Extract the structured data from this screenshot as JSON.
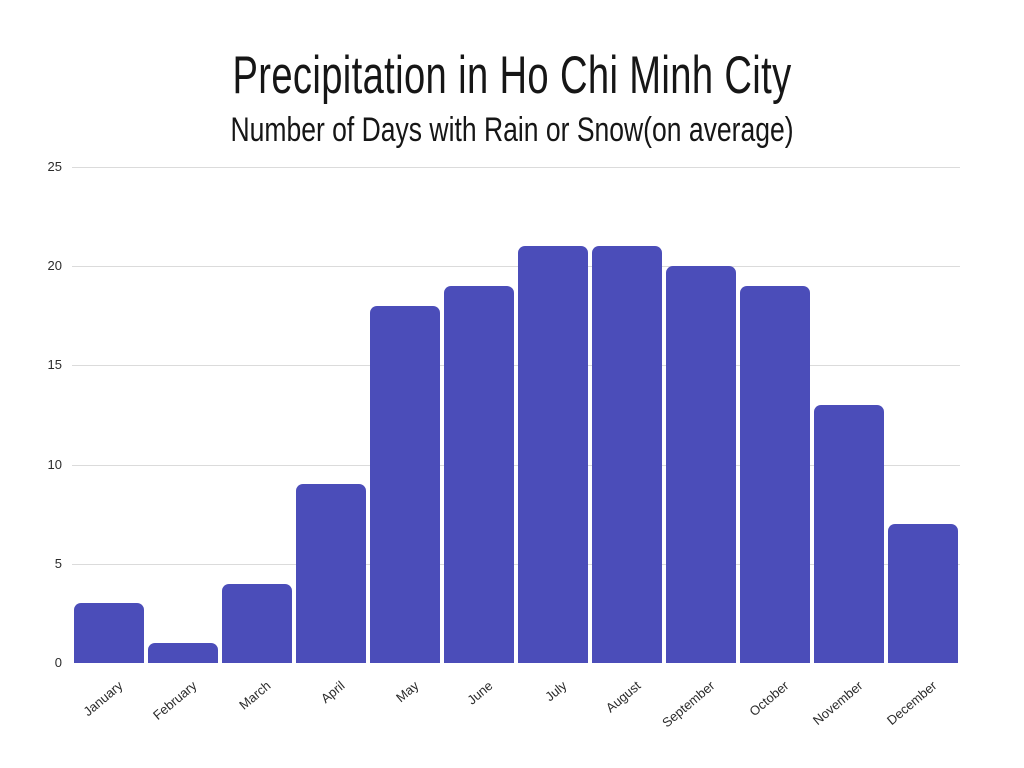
{
  "chart_data": {
    "type": "bar",
    "title": "Precipitation in Ho Chi Minh City",
    "subtitle": "Number of Days with Rain or Snow(on average)",
    "categories": [
      "January",
      "February",
      "March",
      "April",
      "May",
      "June",
      "July",
      "August",
      "September",
      "October",
      "November",
      "December"
    ],
    "values": [
      3,
      1,
      4,
      9,
      18,
      19,
      21,
      21,
      20,
      19,
      13,
      7
    ],
    "xlabel": "",
    "ylabel": "",
    "ylim": [
      0,
      25
    ],
    "yticks": [
      0,
      5,
      10,
      15,
      20,
      25
    ],
    "grid": true,
    "legend_position": "none",
    "bar_color": "#4b4db9",
    "gridline_color": "#dbdbdb",
    "axis_text_color": "#2b2b2b",
    "title_color": "#161616",
    "background_color": "#ffffff"
  }
}
